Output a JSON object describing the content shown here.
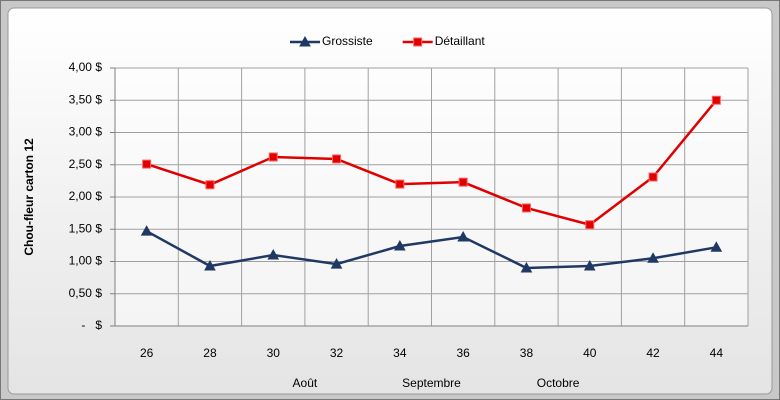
{
  "chart_data": {
    "type": "line",
    "y_label": "Chou-fleur carton 12",
    "categories": [
      "26",
      "28",
      "30",
      "32",
      "34",
      "36",
      "38",
      "40",
      "42",
      "44"
    ],
    "month_labels": [
      "Août",
      "Septembre",
      "Octobre"
    ],
    "series": [
      {
        "name": "Grossiste",
        "color": "#1f3864",
        "marker": "triangle",
        "values": [
          1.47,
          0.93,
          1.1,
          0.96,
          1.24,
          1.38,
          0.9,
          0.93,
          1.05,
          1.22
        ]
      },
      {
        "name": "Détaillant",
        "color": "#e00000",
        "marker": "square",
        "values": [
          2.51,
          2.19,
          2.62,
          2.59,
          2.2,
          2.23,
          1.83,
          1.57,
          2.31,
          3.5
        ]
      }
    ],
    "ylim": [
      0,
      4
    ],
    "yticks": [
      {
        "value": 0,
        "label": "-   $"
      },
      {
        "value": 0.5,
        "label": "0,50 $"
      },
      {
        "value": 1,
        "label": "1,00 $"
      },
      {
        "value": 1.5,
        "label": "1,50 $"
      },
      {
        "value": 2,
        "label": "2,00 $"
      },
      {
        "value": 2.5,
        "label": "2,50 $"
      },
      {
        "value": 3,
        "label": "3,00 $"
      },
      {
        "value": 3.5,
        "label": "3,50 $"
      },
      {
        "value": 4,
        "label": "4,00 $"
      }
    ],
    "grid": true,
    "legend": "top"
  }
}
